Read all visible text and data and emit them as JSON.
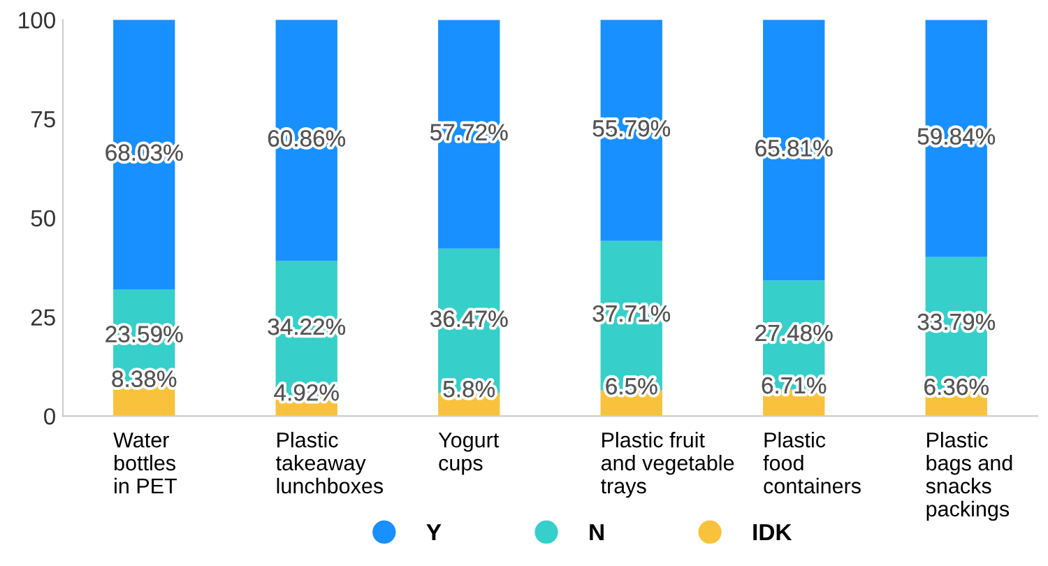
{
  "chart_data": {
    "type": "bar",
    "stacked": true,
    "categories": [
      "Water\nbottles\nin PET",
      "Plastic\ntakeaway\nlunchboxes",
      "Yogurt\ncups",
      "Plastic fruit\nand vegetable\ntrays",
      "Plastic\nfood\ncontainers",
      "Plastic\nbags and\nsnacks\npackings"
    ],
    "series": [
      {
        "name": "IDK",
        "color": "#f9c23c",
        "values": [
          8.38,
          4.92,
          5.8,
          6.5,
          6.71,
          6.36
        ],
        "value_labels": [
          "8.38%",
          "4.92%",
          "5.8%",
          "6.5%",
          "6.71%",
          "6.36%"
        ]
      },
      {
        "name": "N",
        "color": "#36cfc9",
        "values": [
          23.59,
          34.22,
          36.47,
          37.71,
          27.48,
          33.79
        ],
        "value_labels": [
          "23.59%",
          "34.22%",
          "36.47%",
          "37.71%",
          "27.48%",
          "33.79%"
        ]
      },
      {
        "name": "Y",
        "color": "#1890ff",
        "values": [
          68.03,
          60.86,
          57.72,
          55.79,
          65.81,
          59.84
        ],
        "value_labels": [
          "68.03%",
          "60.86%",
          "57.72%",
          "55.79%",
          "65.81%",
          "59.84%"
        ]
      }
    ],
    "ylim": [
      0,
      100
    ],
    "yticks": [
      0,
      25,
      50,
      75,
      100
    ],
    "grid": false,
    "legend": "bottom",
    "marker": "circle"
  }
}
